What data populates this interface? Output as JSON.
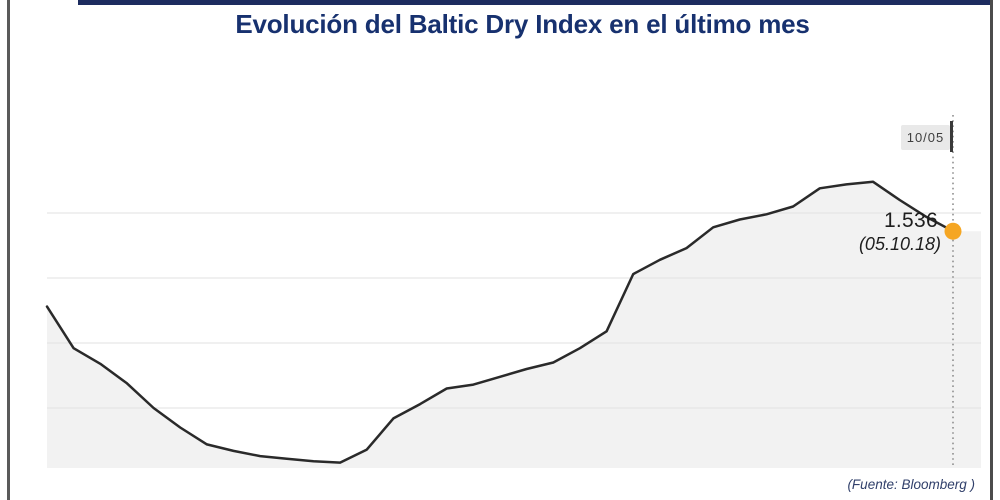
{
  "header": {
    "title": "Evolución del Baltic Dry Index en el último mes",
    "title_color": "#17316f",
    "accent_bar_color": "#1d2c5f"
  },
  "cursor": {
    "label": "10/05"
  },
  "annotations": {
    "value": "1.536",
    "date": "(05.10.18)"
  },
  "footer": {
    "source": "(Fuente: Bloomberg )"
  },
  "chart_data": {
    "type": "area",
    "title": "Evolución del Baltic Dry Index en el último mes",
    "series_name": "Baltic Dry Index",
    "values": [
      1478,
      1446,
      1434,
      1419,
      1400,
      1385,
      1372,
      1367,
      1363,
      1361,
      1359,
      1358,
      1368,
      1392,
      1403,
      1415,
      1418,
      1424,
      1430,
      1435,
      1446,
      1459,
      1503,
      1514,
      1523,
      1539,
      1545,
      1549,
      1555,
      1569,
      1572,
      1574,
      1560,
      1547,
      1536
    ],
    "last_point": {
      "value": 1536,
      "value_label": "1.536",
      "date_label": "(05.10.18)",
      "cursor_date_label": "10/05"
    },
    "gridline_values": [
      1550,
      1500,
      1450,
      1400
    ],
    "ylim": [
      1354,
      1590
    ],
    "xlabel": "",
    "ylabel": "",
    "legend_position": "none",
    "grid": "horizontal",
    "line_color": "#2a2a2a",
    "fill_color": "#f2f2f2",
    "grid_color": "#e2e2e2",
    "marker_color": "#f5a623",
    "crosshair_color": "#8f8f8f",
    "source": "(Fuente: Bloomberg )"
  }
}
